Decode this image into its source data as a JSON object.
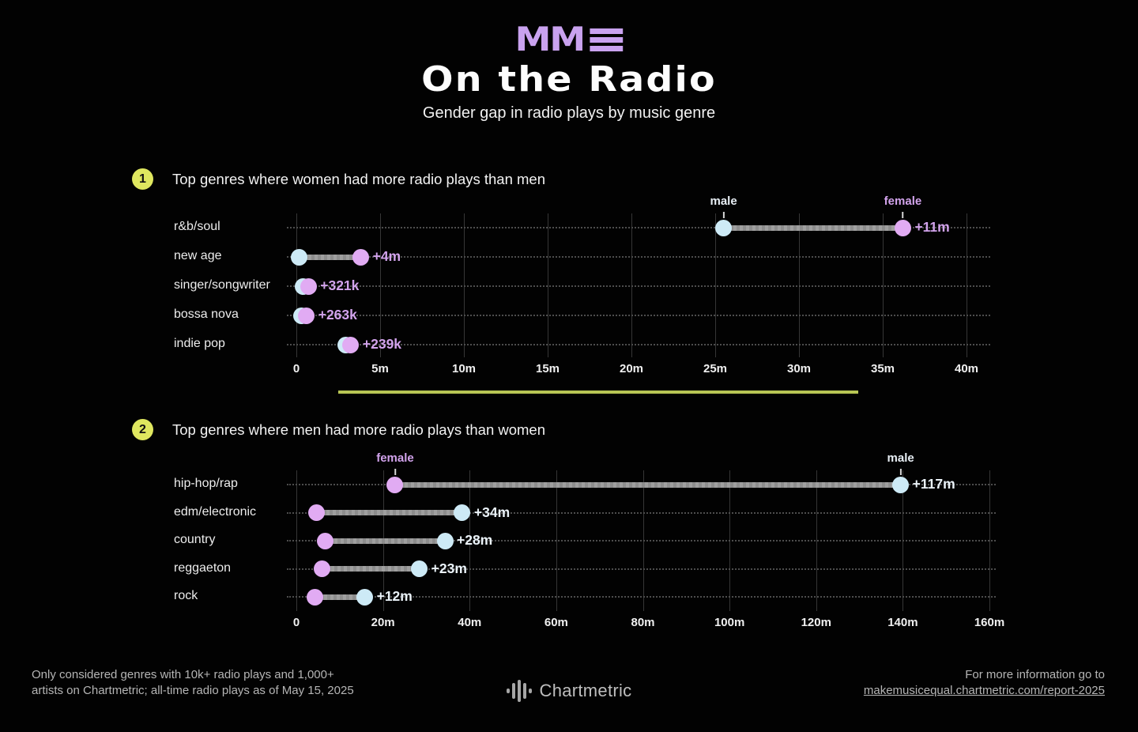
{
  "header": {
    "logo_text": "MM",
    "title": "On the Radio",
    "subtitle": "Gender gap in radio plays by music genre"
  },
  "colors": {
    "male_dot": "#cdeaf6",
    "female_dot": "#e1abf3",
    "bar_gray": "#919191",
    "accent_yellow": "#dfe75f",
    "divider_yellow": "#b8c654",
    "logo_purple": "#c9a2ef",
    "male_annotation": "#e8eff5",
    "female_annotation": "#d2a3ec"
  },
  "chart_data": [
    {
      "type": "dumbbell",
      "section_number": "1",
      "section_title": "Top genres where women had more radio plays than men",
      "axis_max": 40,
      "tick_values": [
        0,
        5,
        10,
        15,
        20,
        25,
        30,
        35,
        40
      ],
      "tick_labels": [
        "0",
        "5m",
        "10m",
        "15m",
        "20m",
        "25m",
        "30m",
        "35m",
        "40m"
      ],
      "value_label_color": "#d2a3ec",
      "annotations": {
        "male": "male",
        "female": "female"
      },
      "rows": [
        {
          "genre": "r&b/soul",
          "male": 25.5,
          "female": 36.2,
          "label": "+11m",
          "annotate": true
        },
        {
          "genre": "new age",
          "male": 0.15,
          "female": 3.85,
          "label": "+4m"
        },
        {
          "genre": "singer/songwriter",
          "male": 0.4,
          "female": 0.72,
          "label": "+321k"
        },
        {
          "genre": "bossa nova",
          "male": 0.3,
          "female": 0.6,
          "label": "+263k"
        },
        {
          "genre": "indie pop",
          "male": 2.95,
          "female": 3.25,
          "label": "+239k"
        }
      ]
    },
    {
      "type": "dumbbell",
      "section_number": "2",
      "section_title": "Top genres where men had more radio plays than women",
      "axis_max": 160,
      "tick_values": [
        0,
        20,
        40,
        60,
        80,
        100,
        120,
        140,
        160
      ],
      "tick_labels": [
        "0",
        "20m",
        "40m",
        "60m",
        "80m",
        "100m",
        "120m",
        "140m",
        "160m"
      ],
      "value_label_color": "#ebf3f9",
      "annotations": {
        "male": "male",
        "female": "female"
      },
      "rows": [
        {
          "genre": "hip-hop/rap",
          "female": 22.8,
          "male": 139.5,
          "label": "+117m",
          "annotate": true
        },
        {
          "genre": "edm/electronic",
          "female": 4.7,
          "male": 38.3,
          "label": "+34m"
        },
        {
          "genre": "country",
          "female": 6.6,
          "male": 34.3,
          "label": "+28m"
        },
        {
          "genre": "reggaeton",
          "female": 5.9,
          "male": 28.4,
          "label": "+23m"
        },
        {
          "genre": "rock",
          "female": 4.2,
          "male": 15.8,
          "label": "+12m"
        }
      ]
    }
  ],
  "footer": {
    "note_line1": "Only considered genres with 10k+ radio plays and 1,000+",
    "note_line2": "artists on Chartmetric; all-time radio plays as of May 15, 2025",
    "brand": "Chartmetric",
    "info_line": "For more information go to",
    "info_link": "makemusicequal.chartmetric.com/report-2025"
  }
}
